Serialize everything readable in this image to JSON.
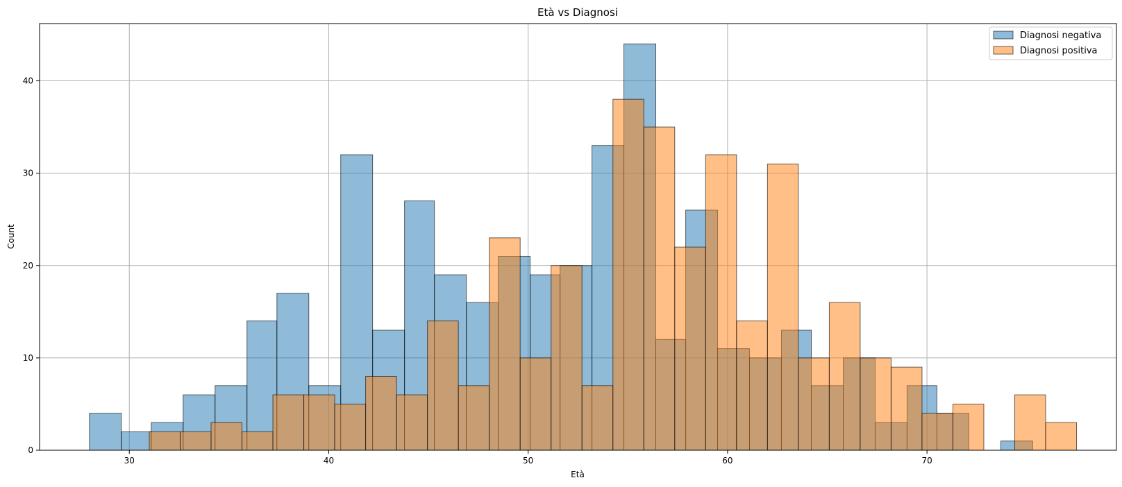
{
  "chart_data": {
    "type": "bar",
    "title": "Età vs Diagnosi",
    "xlabel": "Età",
    "ylabel": "Count",
    "xlim": [
      25.5,
      79.5
    ],
    "ylim": [
      0,
      46.2
    ],
    "xticks": [
      30,
      40,
      50,
      60,
      70
    ],
    "yticks": [
      0,
      10,
      20,
      30,
      40
    ],
    "grid": true,
    "legend_position": "top-right",
    "series": [
      {
        "name": "Diagnosi negativa",
        "color": "#1f77b4",
        "bins": [
          {
            "x0": 28.0,
            "x1": 29.6,
            "count": 4
          },
          {
            "x0": 29.6,
            "x1": 31.1,
            "count": 2
          },
          {
            "x0": 31.1,
            "x1": 32.7,
            "count": 3
          },
          {
            "x0": 32.7,
            "x1": 34.3,
            "count": 6
          },
          {
            "x0": 34.3,
            "x1": 35.9,
            "count": 7
          },
          {
            "x0": 35.9,
            "x1": 37.4,
            "count": 14
          },
          {
            "x0": 37.4,
            "x1": 39.0,
            "count": 17
          },
          {
            "x0": 39.0,
            "x1": 40.6,
            "count": 7
          },
          {
            "x0": 40.6,
            "x1": 42.2,
            "count": 32
          },
          {
            "x0": 42.2,
            "x1": 43.8,
            "count": 13
          },
          {
            "x0": 43.8,
            "x1": 45.3,
            "count": 27
          },
          {
            "x0": 45.3,
            "x1": 46.9,
            "count": 19
          },
          {
            "x0": 46.9,
            "x1": 48.5,
            "count": 16
          },
          {
            "x0": 48.5,
            "x1": 50.1,
            "count": 21
          },
          {
            "x0": 50.1,
            "x1": 51.6,
            "count": 19
          },
          {
            "x0": 51.6,
            "x1": 53.2,
            "count": 20
          },
          {
            "x0": 53.2,
            "x1": 54.8,
            "count": 33
          },
          {
            "x0": 54.8,
            "x1": 56.4,
            "count": 44
          },
          {
            "x0": 56.4,
            "x1": 57.9,
            "count": 12
          },
          {
            "x0": 57.9,
            "x1": 59.5,
            "count": 26
          },
          {
            "x0": 59.5,
            "x1": 61.1,
            "count": 11
          },
          {
            "x0": 61.1,
            "x1": 62.7,
            "count": 10
          },
          {
            "x0": 62.7,
            "x1": 64.2,
            "count": 13
          },
          {
            "x0": 64.2,
            "x1": 65.8,
            "count": 7
          },
          {
            "x0": 65.8,
            "x1": 67.4,
            "count": 10
          },
          {
            "x0": 67.4,
            "x1": 69.0,
            "count": 3
          },
          {
            "x0": 69.0,
            "x1": 70.5,
            "count": 7
          },
          {
            "x0": 70.5,
            "x1": 72.1,
            "count": 4
          },
          {
            "x0": 73.7,
            "x1": 75.3,
            "count": 1
          }
        ]
      },
      {
        "name": "Diagnosi positiva",
        "color": "#ff7f0e",
        "bins": [
          {
            "x0": 31.0,
            "x1": 32.55,
            "count": 2
          },
          {
            "x0": 32.55,
            "x1": 34.1,
            "count": 2
          },
          {
            "x0": 34.1,
            "x1": 35.65,
            "count": 3
          },
          {
            "x0": 35.65,
            "x1": 37.2,
            "count": 2
          },
          {
            "x0": 37.2,
            "x1": 38.75,
            "count": 6
          },
          {
            "x0": 38.75,
            "x1": 40.3,
            "count": 6
          },
          {
            "x0": 40.3,
            "x1": 41.85,
            "count": 5
          },
          {
            "x0": 41.85,
            "x1": 43.4,
            "count": 8
          },
          {
            "x0": 43.4,
            "x1": 44.95,
            "count": 6
          },
          {
            "x0": 44.95,
            "x1": 46.5,
            "count": 14
          },
          {
            "x0": 46.5,
            "x1": 48.05,
            "count": 7
          },
          {
            "x0": 48.05,
            "x1": 49.6,
            "count": 23
          },
          {
            "x0": 49.6,
            "x1": 51.15,
            "count": 10
          },
          {
            "x0": 51.15,
            "x1": 52.7,
            "count": 20
          },
          {
            "x0": 52.7,
            "x1": 54.25,
            "count": 7
          },
          {
            "x0": 54.25,
            "x1": 55.8,
            "count": 38
          },
          {
            "x0": 55.8,
            "x1": 57.35,
            "count": 35
          },
          {
            "x0": 57.35,
            "x1": 58.9,
            "count": 22
          },
          {
            "x0": 58.9,
            "x1": 60.45,
            "count": 32
          },
          {
            "x0": 60.45,
            "x1": 62.0,
            "count": 14
          },
          {
            "x0": 62.0,
            "x1": 63.55,
            "count": 31
          },
          {
            "x0": 63.55,
            "x1": 65.1,
            "count": 10
          },
          {
            "x0": 65.1,
            "x1": 66.65,
            "count": 16
          },
          {
            "x0": 66.65,
            "x1": 68.2,
            "count": 10
          },
          {
            "x0": 68.2,
            "x1": 69.75,
            "count": 9
          },
          {
            "x0": 69.75,
            "x1": 71.3,
            "count": 4
          },
          {
            "x0": 71.3,
            "x1": 72.85,
            "count": 5
          },
          {
            "x0": 74.4,
            "x1": 75.95,
            "count": 6
          },
          {
            "x0": 75.95,
            "x1": 77.5,
            "count": 3
          }
        ]
      }
    ]
  }
}
